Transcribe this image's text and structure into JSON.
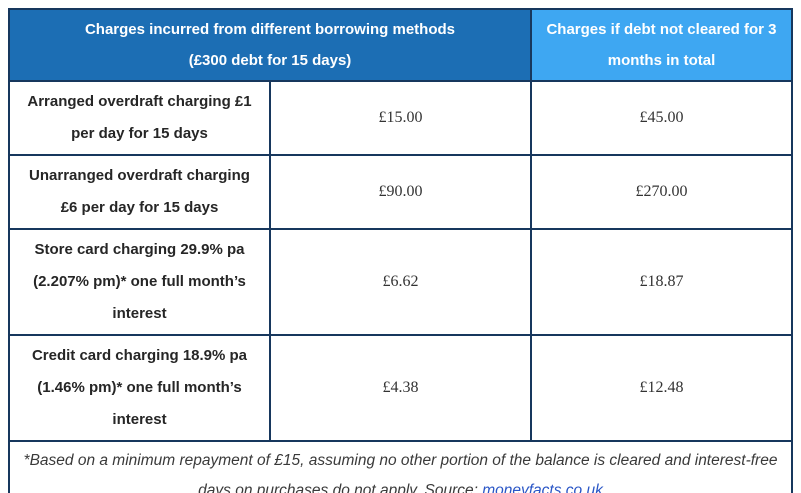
{
  "colors": {
    "header_primary_bg": "#1C6EB4",
    "header_secondary_bg": "#3EA7F2",
    "table_border": "#17375D",
    "header_text": "#FFFFFF",
    "link": "#2A56C6"
  },
  "table": {
    "header_main": {
      "text": "Charges incurred from different borrowing methods (£300 debt for 15 days)",
      "lines": [
        "Charges incurred from different borrowing methods",
        "(£300 debt for 15 days)"
      ]
    },
    "header_secondary": {
      "text": "Charges if debt not cleared for 3 months in total",
      "lines": [
        "Charges if debt not cleared for 3",
        "months in total"
      ]
    },
    "rows": [
      {
        "method": "Arranged overdraft charging £1 per day for 15 days",
        "method_lines": [
          "Arranged overdraft charging £1",
          "per day for 15 days"
        ],
        "charge_15_days": "£15.00",
        "charge_3_months": "£45.00"
      },
      {
        "method": "Unarranged overdraft charging £6 per day for 15 days",
        "method_lines": [
          "Unarranged overdraft charging",
          "£6 per day for 15 days"
        ],
        "charge_15_days": "£90.00",
        "charge_3_months": "£270.00"
      },
      {
        "method": "Store card charging 29.9% pa (2.207% pm)* one full month’s interest",
        "method_lines": [
          "Store card charging 29.9% pa",
          "(2.207% pm)* one full month’s",
          "interest"
        ],
        "charge_15_days": "£6.62",
        "charge_3_months": "£18.87"
      },
      {
        "method": "Credit card charging 18.9% pa (1.46% pm)* one full month’s interest",
        "method_lines": [
          "Credit card charging 18.9% pa",
          "(1.46% pm)* one full month’s",
          "interest"
        ],
        "charge_15_days": "£4.38",
        "charge_3_months": "£12.48"
      }
    ],
    "footnote": {
      "text_before_link": "*Based on a minimum repayment of £15, assuming no other portion of the balance is cleared and interest-free days on purchases do not apply. Source: ",
      "link_text": "moneyfacts.co.uk"
    }
  }
}
